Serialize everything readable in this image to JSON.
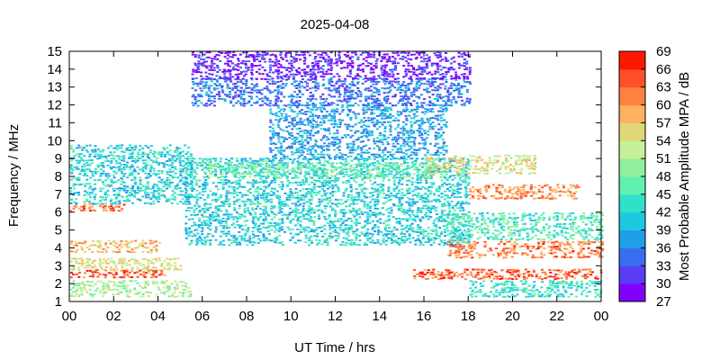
{
  "chart_data": {
    "type": "heatmap",
    "title": "2025-04-08",
    "xlabel": "UT Time / hrs",
    "ylabel": "Frequency / MHz",
    "colorbar_label": "Most Probable Amplitude MPA / dB",
    "xlim": [
      0,
      24
    ],
    "ylim": [
      1,
      15
    ],
    "x_tick_labels": [
      "00",
      "02",
      "04",
      "06",
      "08",
      "10",
      "12",
      "14",
      "16",
      "18",
      "20",
      "22",
      "00"
    ],
    "y_tick_labels": [
      "1",
      "2",
      "3",
      "4",
      "5",
      "6",
      "7",
      "8",
      "9",
      "10",
      "11",
      "12",
      "13",
      "14",
      "15"
    ],
    "colorbar_ticks": [
      "27",
      "30",
      "33",
      "36",
      "39",
      "42",
      "45",
      "48",
      "51",
      "54",
      "57",
      "60",
      "63",
      "66",
      "69"
    ],
    "colorbar_colors": [
      "#8000ff",
      "#5a3cf5",
      "#3a6ef0",
      "#1ea0e8",
      "#1ec8e0",
      "#30e0c8",
      "#60f0b0",
      "#90f0a0",
      "#c8f098",
      "#e0d878",
      "#ffb060",
      "#ff8040",
      "#ff5028",
      "#ff1800"
    ],
    "vmin": 27,
    "vmax": 69,
    "bands": [
      {
        "t0": 0,
        "t1": 5.5,
        "f0": 1.3,
        "f1": 2.2,
        "amp": 51
      },
      {
        "t0": 0,
        "t1": 4.3,
        "f0": 2.4,
        "f1": 2.8,
        "amp": 64
      },
      {
        "t0": 0,
        "t1": 5.0,
        "f0": 2.8,
        "f1": 3.5,
        "amp": 54
      },
      {
        "t0": 0,
        "t1": 4.0,
        "f0": 3.8,
        "f1": 4.5,
        "amp": 58
      },
      {
        "t0": 0,
        "t1": 2.5,
        "f0": 6.1,
        "f1": 6.5,
        "amp": 63
      },
      {
        "t0": 0,
        "t1": 5.5,
        "f0": 6.5,
        "f1": 9.8,
        "amp": 42
      },
      {
        "t0": 5.2,
        "t1": 18,
        "f0": 4.2,
        "f1": 9.0,
        "amp": 42
      },
      {
        "t0": 6.0,
        "t1": 17,
        "f0": 8.0,
        "f1": 8.8,
        "amp": 48
      },
      {
        "t0": 9.0,
        "t1": 17,
        "f0": 9.0,
        "f1": 12.0,
        "amp": 38
      },
      {
        "t0": 5.5,
        "t1": 18,
        "f0": 12.0,
        "f1": 13.5,
        "amp": 35
      },
      {
        "t0": 5.5,
        "t1": 18,
        "f0": 13.5,
        "f1": 15.0,
        "amp": 30
      },
      {
        "t0": 15.5,
        "t1": 24,
        "f0": 2.3,
        "f1": 2.8,
        "amp": 64
      },
      {
        "t0": 17.0,
        "t1": 24,
        "f0": 3.5,
        "f1": 4.4,
        "amp": 62
      },
      {
        "t0": 17.0,
        "t1": 24,
        "f0": 4.5,
        "f1": 6.0,
        "amp": 45
      },
      {
        "t0": 18.0,
        "t1": 23,
        "f0": 6.8,
        "f1": 7.6,
        "amp": 61
      },
      {
        "t0": 16.0,
        "t1": 21,
        "f0": 8.2,
        "f1": 9.2,
        "amp": 55
      },
      {
        "t0": 18.0,
        "t1": 24,
        "f0": 1.3,
        "f1": 2.2,
        "amp": 44
      }
    ]
  }
}
